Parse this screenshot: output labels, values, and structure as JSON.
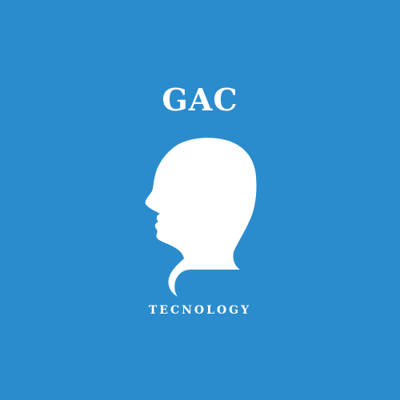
{
  "logo": {
    "title": "GAC",
    "subtitle": "TECNOLOGY",
    "icon": "head-silhouette-icon",
    "background_color": "#2b8ccd",
    "foreground_color": "#ffffff"
  }
}
